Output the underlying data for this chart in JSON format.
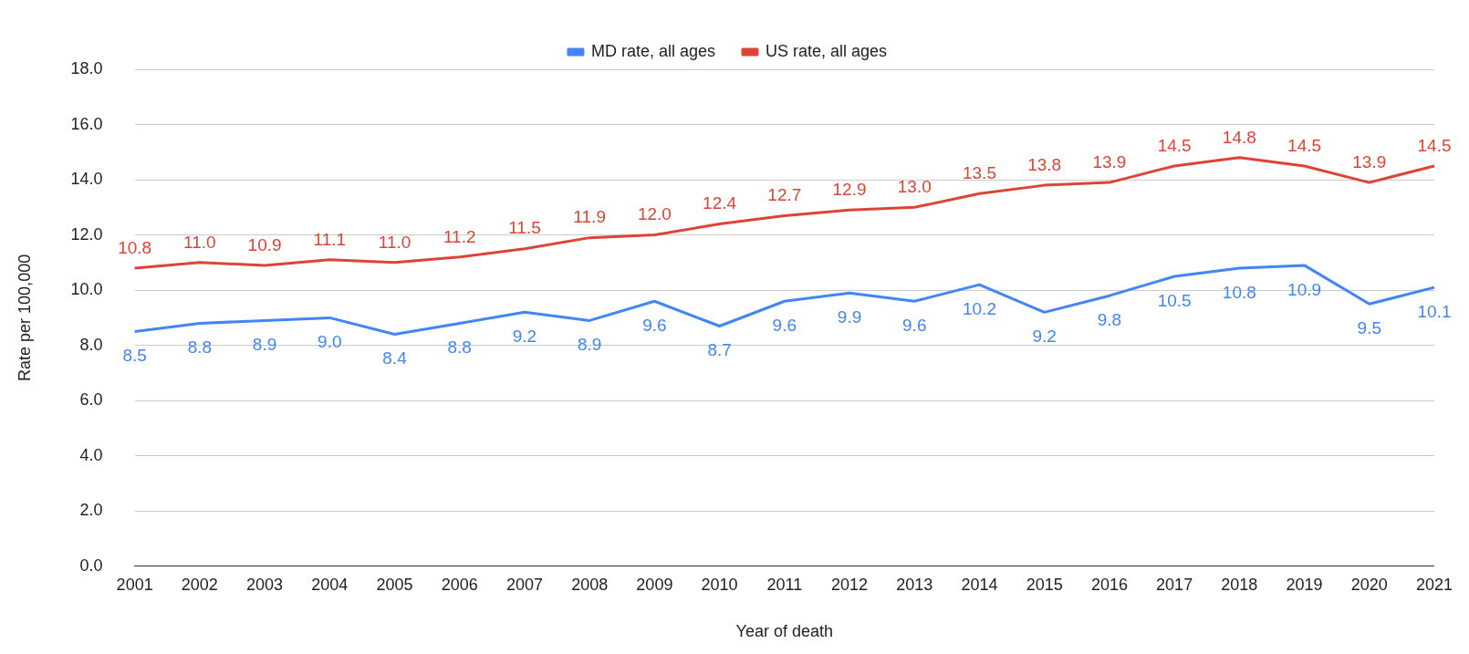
{
  "chart_data": {
    "type": "line",
    "xlabel": "Year of death",
    "ylabel": "Rate per 100,000",
    "categories": [
      "2001",
      "2002",
      "2003",
      "2004",
      "2005",
      "2006",
      "2007",
      "2008",
      "2009",
      "2010",
      "2011",
      "2012",
      "2013",
      "2014",
      "2015",
      "2016",
      "2017",
      "2018",
      "2019",
      "2020",
      "2021"
    ],
    "series": [
      {
        "name": "MD rate, all ages",
        "color": "#4285f4",
        "values": [
          8.5,
          8.8,
          8.9,
          9.0,
          8.4,
          8.8,
          9.2,
          8.9,
          9.6,
          8.7,
          9.6,
          9.9,
          9.6,
          10.2,
          9.2,
          9.8,
          10.5,
          10.8,
          10.9,
          9.5,
          10.1
        ],
        "value_labels": [
          "8.5",
          "8.8",
          "8.9",
          "9.0",
          "8.4",
          "8.8",
          "9.2",
          "8.9",
          "9.6",
          "8.7",
          "9.6",
          "9.9",
          "9.6",
          "10.2",
          "9.2",
          "9.8",
          "10.5",
          "10.8",
          "10.9",
          "9.5",
          "10.1"
        ]
      },
      {
        "name": "US rate, all ages",
        "color": "#db4437",
        "values": [
          10.8,
          11.0,
          10.9,
          11.1,
          11.0,
          11.2,
          11.5,
          11.9,
          12.0,
          12.4,
          12.7,
          12.9,
          13.0,
          13.5,
          13.8,
          13.9,
          14.5,
          14.8,
          14.5,
          13.9,
          14.5
        ],
        "value_labels": [
          "10.8",
          "11.0",
          "10.9",
          "11.1",
          "11.0",
          "11.2",
          "11.5",
          "11.9",
          "12.0",
          "12.4",
          "12.7",
          "12.9",
          "13.0",
          "13.5",
          "13.8",
          "13.9",
          "14.5",
          "14.8",
          "14.5",
          "13.9",
          "14.5"
        ]
      }
    ],
    "ylim": [
      0,
      18
    ],
    "yticks": [
      {
        "value": 0,
        "label": "0.0"
      },
      {
        "value": 2,
        "label": "2.0"
      },
      {
        "value": 4,
        "label": "4.0"
      },
      {
        "value": 6,
        "label": "6.0"
      },
      {
        "value": 8,
        "label": "8.0"
      },
      {
        "value": 10,
        "label": "10.0"
      },
      {
        "value": 12,
        "label": "12.0"
      },
      {
        "value": 14,
        "label": "14.0"
      },
      {
        "value": 16,
        "label": "16.0"
      },
      {
        "value": 18,
        "label": "18.0"
      }
    ],
    "grid": "y",
    "legend": "top",
    "marker": "none",
    "line_style": "solid"
  }
}
